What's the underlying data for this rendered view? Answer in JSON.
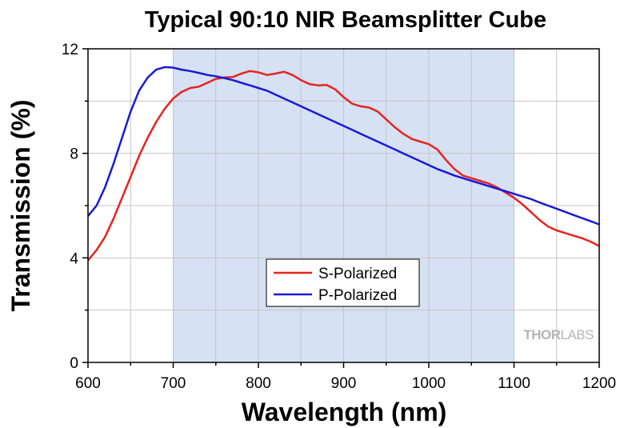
{
  "chart_data": {
    "type": "line",
    "title": "Typical 90:10 NIR Beamsplitter Cube",
    "xlabel": "Wavelength (nm)",
    "ylabel": "Transmission (%)",
    "xlim": [
      600,
      1200
    ],
    "ylim": [
      0,
      12
    ],
    "x_ticks": [
      600,
      700,
      800,
      900,
      1000,
      1100,
      1200
    ],
    "y_ticks": [
      0,
      4,
      8,
      12
    ],
    "grid": true,
    "highlight_region": [
      700,
      1100
    ],
    "legend_position": "lower-center",
    "series": [
      {
        "name": "S-Polarized",
        "color": "#e8231f",
        "x": [
          600,
          610,
          620,
          630,
          640,
          650,
          660,
          670,
          680,
          690,
          700,
          710,
          720,
          730,
          740,
          750,
          760,
          770,
          780,
          790,
          800,
          810,
          820,
          830,
          840,
          850,
          860,
          870,
          880,
          890,
          900,
          910,
          920,
          930,
          940,
          950,
          960,
          970,
          980,
          990,
          1000,
          1010,
          1020,
          1030,
          1040,
          1050,
          1060,
          1070,
          1080,
          1090,
          1100,
          1110,
          1120,
          1130,
          1140,
          1150,
          1160,
          1170,
          1180,
          1190,
          1200
        ],
        "y": [
          3.9,
          4.3,
          4.8,
          5.5,
          6.3,
          7.1,
          7.9,
          8.6,
          9.2,
          9.7,
          10.1,
          10.35,
          10.5,
          10.55,
          10.7,
          10.85,
          10.9,
          10.92,
          11.05,
          11.15,
          11.1,
          11.0,
          11.05,
          11.12,
          11.0,
          10.8,
          10.65,
          10.6,
          10.62,
          10.45,
          10.15,
          9.9,
          9.8,
          9.75,
          9.6,
          9.3,
          9.0,
          8.75,
          8.55,
          8.45,
          8.35,
          8.15,
          7.75,
          7.4,
          7.15,
          7.05,
          6.95,
          6.85,
          6.7,
          6.5,
          6.3,
          6.05,
          5.75,
          5.45,
          5.2,
          5.05,
          4.95,
          4.85,
          4.75,
          4.62,
          4.45
        ]
      },
      {
        "name": "P-Polarized",
        "color": "#1a1ad6",
        "x": [
          600,
          610,
          620,
          630,
          640,
          650,
          660,
          670,
          680,
          690,
          700,
          710,
          720,
          730,
          740,
          750,
          760,
          770,
          780,
          790,
          800,
          810,
          820,
          830,
          840,
          850,
          860,
          870,
          880,
          890,
          900,
          910,
          920,
          930,
          940,
          950,
          960,
          970,
          980,
          990,
          1000,
          1010,
          1020,
          1030,
          1040,
          1050,
          1060,
          1070,
          1080,
          1090,
          1100,
          1110,
          1120,
          1130,
          1140,
          1150,
          1160,
          1170,
          1180,
          1190,
          1200
        ],
        "y": [
          5.6,
          6.0,
          6.7,
          7.6,
          8.6,
          9.6,
          10.4,
          10.9,
          11.2,
          11.3,
          11.28,
          11.2,
          11.15,
          11.08,
          11.0,
          10.95,
          10.88,
          10.8,
          10.7,
          10.6,
          10.5,
          10.4,
          10.25,
          10.1,
          9.95,
          9.8,
          9.65,
          9.5,
          9.35,
          9.2,
          9.05,
          8.9,
          8.75,
          8.6,
          8.45,
          8.3,
          8.15,
          8.0,
          7.85,
          7.7,
          7.55,
          7.4,
          7.28,
          7.15,
          7.05,
          6.95,
          6.85,
          6.75,
          6.65,
          6.55,
          6.45,
          6.35,
          6.25,
          6.12,
          6.0,
          5.88,
          5.76,
          5.64,
          5.52,
          5.4,
          5.28
        ]
      }
    ]
  },
  "watermark": {
    "part1": "THOR",
    "part2": "LABS"
  },
  "colors": {
    "highlight": "#d6e1f3",
    "grid": "#c4c4c4",
    "axis": "#000000"
  }
}
